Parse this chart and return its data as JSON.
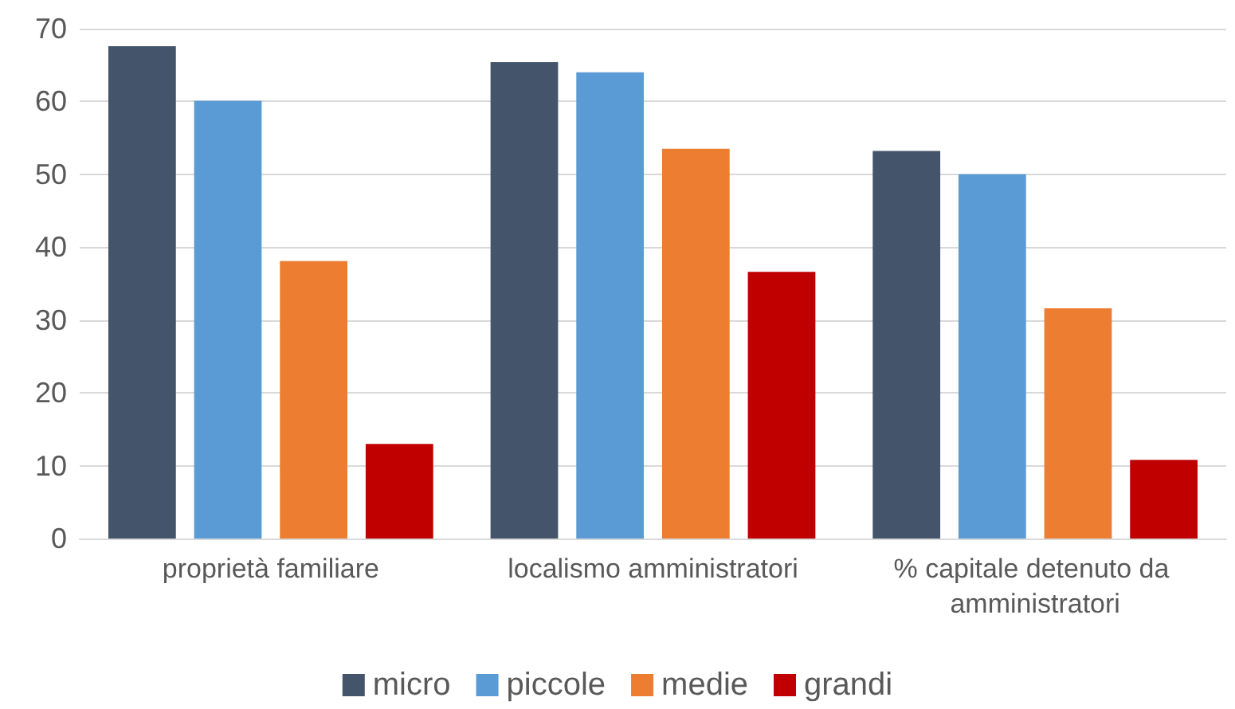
{
  "chart_data": {
    "type": "bar",
    "categories": [
      "proprietà familiare",
      "localismo amministratori",
      "% capitale detenuto da amministratori"
    ],
    "series": [
      {
        "name": "micro",
        "color": "#44546a",
        "values": [
          67.6,
          65.4,
          53.2
        ]
      },
      {
        "name": "piccole",
        "color": "#5b9bd5",
        "values": [
          60.1,
          64,
          50
        ]
      },
      {
        "name": "medie",
        "color": "#ed7d31",
        "values": [
          38.1,
          53.5,
          31.6
        ]
      },
      {
        "name": "grandi",
        "color": "#c00000",
        "values": [
          13,
          36.6,
          10.8
        ]
      }
    ],
    "ylim": [
      0,
      70
    ],
    "yticks": [
      0,
      10,
      20,
      30,
      40,
      50,
      60,
      70
    ],
    "grid": "y",
    "legend": "bottom"
  }
}
